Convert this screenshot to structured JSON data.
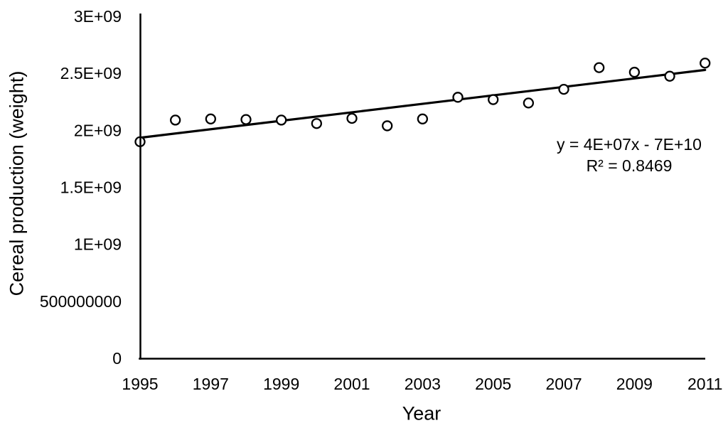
{
  "figure": {
    "background_color": "#ffffff",
    "axis_color": "#000000",
    "text_color": "#000000",
    "trendline_color": "#000000",
    "marker_stroke_color": "#000000",
    "marker_fill_color": "#ffffff"
  },
  "chart_data": {
    "type": "scatter",
    "title": "",
    "xlabel": "Year",
    "ylabel": "Cereal production (weight)",
    "x": [
      1995,
      1996,
      1997,
      1998,
      1999,
      2000,
      2001,
      2002,
      2003,
      2004,
      2005,
      2006,
      2007,
      2008,
      2009,
      2010,
      2011
    ],
    "y": [
      1900000000,
      2090000000,
      2100000000,
      2095000000,
      2090000000,
      2060000000,
      2105000000,
      2040000000,
      2100000000,
      2290000000,
      2270000000,
      2240000000,
      2360000000,
      2550000000,
      2510000000,
      2475000000,
      2590000000
    ],
    "xlim": [
      1995,
      2011
    ],
    "ylim": [
      0,
      3000000000
    ],
    "grid": false,
    "legend": "none",
    "marker": {
      "shape": "open-circle",
      "radius": 6.5,
      "stroke_width": 2.3
    },
    "xticks": {
      "values": [
        1995,
        1997,
        1999,
        2001,
        2003,
        2005,
        2007,
        2009,
        2011
      ],
      "labels": [
        "1995",
        "1997",
        "1999",
        "2001",
        "2003",
        "2005",
        "2007",
        "2009",
        "2011"
      ]
    },
    "yticks": {
      "values": [
        0,
        500000000,
        1000000000,
        1500000000,
        2000000000,
        2500000000,
        3000000000
      ],
      "labels": [
        "0",
        "500000000",
        "1E+09",
        "1.5E+09",
        "2E+09",
        "2.5E+09",
        "3E+09"
      ]
    },
    "trendline": {
      "x1": 1995,
      "y1": 1935000000,
      "x2": 2011,
      "y2": 2530000000,
      "equation": "y = 4E+07x - 7E+10",
      "r_squared": "R² = 0.8469"
    }
  }
}
